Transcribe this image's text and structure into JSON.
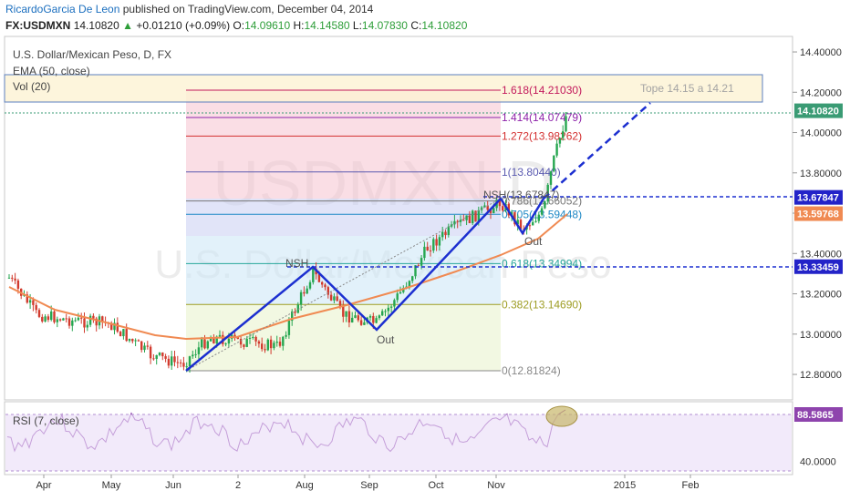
{
  "header": {
    "author": "RicardoGarcia De Leon",
    "published": " published on TradingView.com, December 04, 2014",
    "symbol": "FX:USDMXN",
    "last": "14.10820",
    "up_icon": "▲",
    "change": "+0.01210 (+0.09%)",
    "ohlc": [
      {
        "k": "O:",
        "v": "14.09610"
      },
      {
        "k": "H:",
        "v": "14.14580"
      },
      {
        "k": "L:",
        "v": "14.07830"
      },
      {
        "k": "C:",
        "v": "14.10820"
      }
    ]
  },
  "panel": {
    "title": "U.S. Dollar/Mexican Peso, D, FX",
    "ema": "EMA (50, close)",
    "vol": "Vol (20)",
    "rsi": "RSI (7, close)"
  },
  "watermark": {
    "symbol": "USDMXN,D",
    "name": "U.S. Dollar/Mexican Peso"
  },
  "chart_data": {
    "type": "candlestick",
    "y_axis_labels": [
      "14.40000",
      "14.20000",
      "14.00000",
      "13.80000",
      "13.60000",
      "13.40000",
      "13.20000",
      "13.00000",
      "12.80000"
    ],
    "ylim": [
      12.72,
      14.42
    ],
    "x_axis_labels": [
      "Apr",
      "May",
      "Jun",
      "2",
      "Aug",
      "Sep",
      "Oct",
      "Nov",
      "2015",
      "Feb"
    ],
    "price_tags": [
      {
        "label": "14.10820",
        "value": 14.1082,
        "color": "#3a9b74"
      },
      {
        "label": "13.67847",
        "value": 13.67847,
        "color": "#2323c8"
      },
      {
        "label": "13.59768",
        "value": 13.59768,
        "color": "#f08a52"
      },
      {
        "label": "13.33459",
        "value": 13.33459,
        "color": "#2323c8"
      }
    ],
    "fibonacci": [
      {
        "label": "1.618(14.21030)",
        "value": 14.2103,
        "color": "#c2185b"
      },
      {
        "label": "1.414(14.07479)",
        "value": 14.07479,
        "color": "#8e24aa"
      },
      {
        "label": "1.272(13.98262)",
        "value": 13.98262,
        "color": "#d32f2f"
      },
      {
        "label": "1(13.80440)",
        "value": 13.8044,
        "color": "#5a5ab0"
      },
      {
        "label": "0.786(13.66052)",
        "value": 13.66052,
        "color": "#777777"
      },
      {
        "label": "0.705(13.59448)",
        "value": 13.59448,
        "color": "#1e88c5"
      },
      {
        "label": "0.618(13.34994)",
        "value": 13.34994,
        "color": "#26a69a"
      },
      {
        "label": "0.382(13.14690)",
        "value": 13.1469,
        "color": "#9e9d24"
      },
      {
        "label": "0(12.81824)",
        "value": 12.81824,
        "color": "#888888"
      }
    ],
    "annotations": [
      {
        "text": "Tope 14.15 a 14.21"
      },
      {
        "text": "NSH"
      },
      {
        "text": "NSH(13.67847)"
      },
      {
        "text": "Out"
      },
      {
        "text": "Out"
      }
    ],
    "rsi": {
      "labels": [
        {
          "label": "88.5865",
          "value": 88.5865,
          "color": "#8e44ad"
        },
        {
          "label": "40.0000",
          "value": 40
        }
      ]
    }
  }
}
